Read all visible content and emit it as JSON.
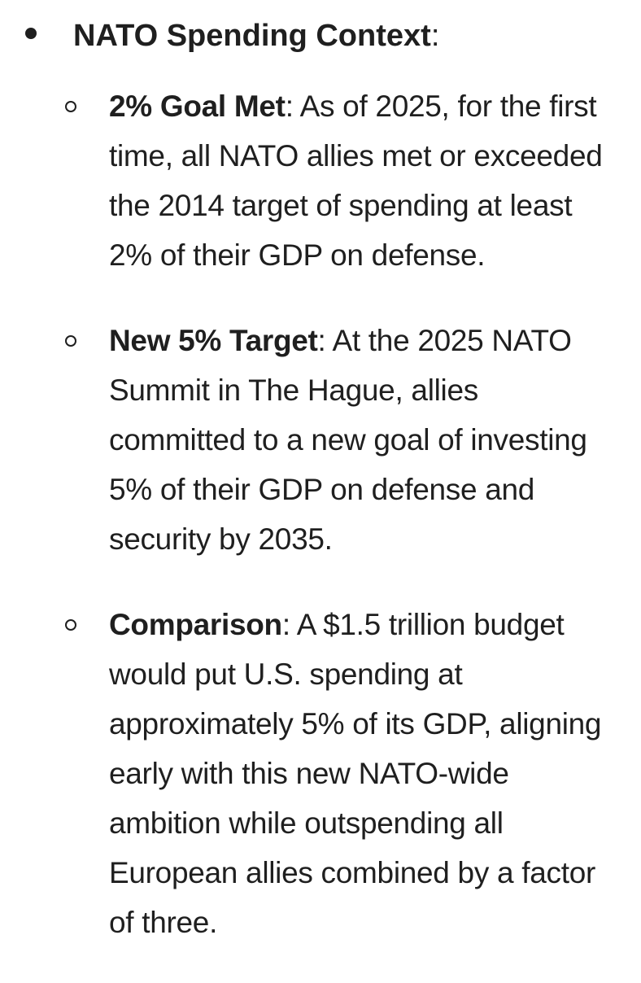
{
  "section": {
    "heading": "NATO Spending Context",
    "heading_colon": ":",
    "items": [
      {
        "term": "2% Goal Met",
        "separator": ":",
        "text": " As of 2025, for the first time, all NATO allies met or exceeded the 2014 target of spending at least 2% of their GDP on defense."
      },
      {
        "term": "New 5% Target",
        "separator": ":",
        "text": " At the 2025 NATO Summit in The Hague, allies committed to a new goal of investing 5% of their GDP on defense and security by 2035."
      },
      {
        "term": "Comparison",
        "separator": ":",
        "text": " A $1.5 trillion budget would put U.S. spending at approximately 5% of its GDP, aligning early with this new NATO-wide ambition while outspending all European allies combined by a factor of three."
      }
    ]
  }
}
